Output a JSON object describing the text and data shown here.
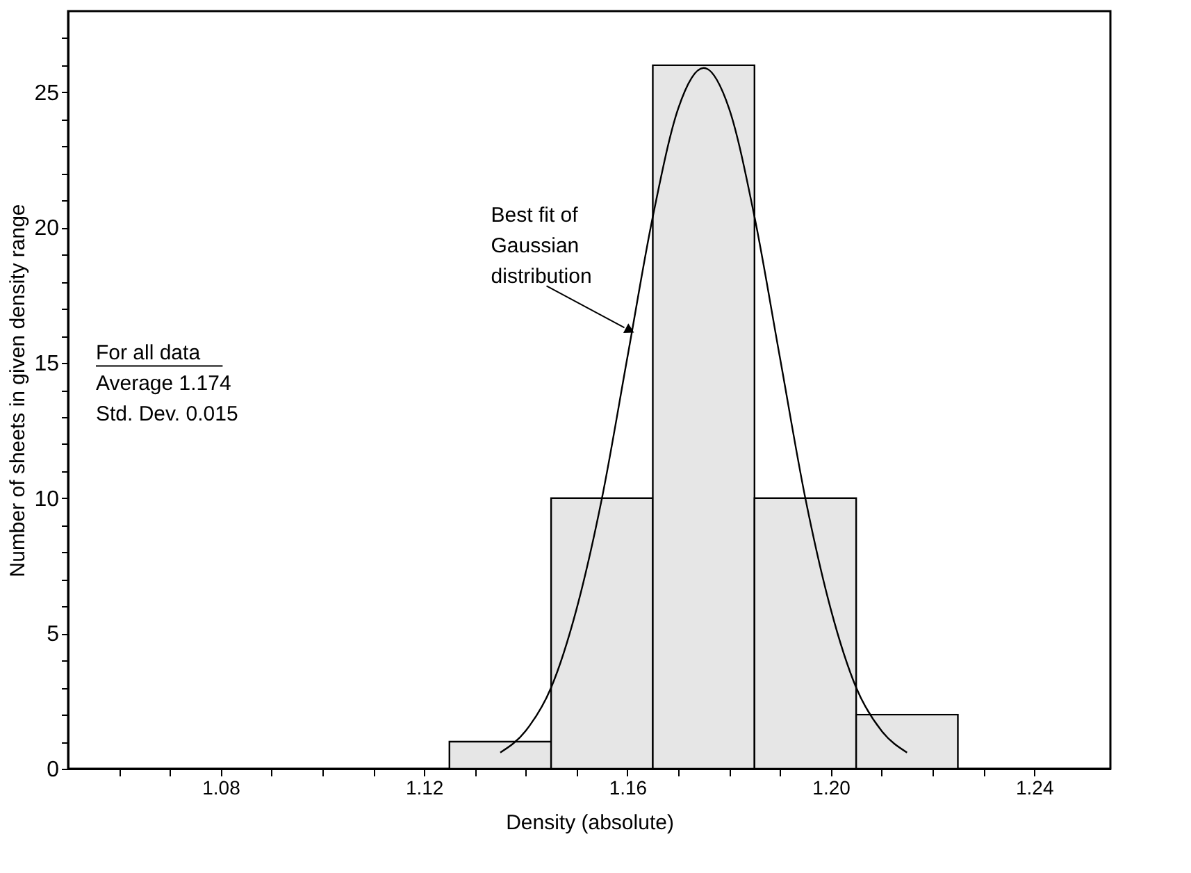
{
  "chart_data": {
    "type": "histogram",
    "xlabel": "Density (absolute)",
    "ylabel": "Number of sheets in given density range",
    "bins": [
      1.125,
      1.145,
      1.165,
      1.185,
      1.205,
      1.225
    ],
    "values": [
      1,
      10,
      26,
      10,
      2
    ],
    "color": "#e6e6e6",
    "series": [
      {
        "type": "line",
        "color": "#000000",
        "x": [
          1.135,
          1.14,
          1.145,
          1.15,
          1.155,
          1.16,
          1.165,
          1.17,
          1.175,
          1.18,
          1.185,
          1.19,
          1.195,
          1.2,
          1.205,
          1.21,
          1.215
        ],
        "values": [
          0.6,
          1.4,
          3.0,
          5.9,
          10.0,
          15.2,
          20.4,
          24.4,
          25.9,
          24.4,
          20.4,
          15.2,
          10.0,
          5.9,
          3.0,
          1.4,
          0.6
        ]
      }
    ],
    "xlim": [
      1.05,
      1.255
    ],
    "ylim": [
      0,
      28
    ],
    "xticks": [
      {
        "value": 1.06,
        "label": null
      },
      {
        "value": 1.07,
        "label": null
      },
      {
        "value": 1.08,
        "label": "1.08"
      },
      {
        "value": 1.09,
        "label": null
      },
      {
        "value": 1.1,
        "label": null
      },
      {
        "value": 1.11,
        "label": null
      },
      {
        "value": 1.12,
        "label": "1.12"
      },
      {
        "value": 1.13,
        "label": null
      },
      {
        "value": 1.14,
        "label": null
      },
      {
        "value": 1.15,
        "label": null
      },
      {
        "value": 1.16,
        "label": "1.16"
      },
      {
        "value": 1.17,
        "label": null
      },
      {
        "value": 1.18,
        "label": null
      },
      {
        "value": 1.19,
        "label": null
      },
      {
        "value": 1.2,
        "label": "1.20"
      },
      {
        "value": 1.21,
        "label": null
      },
      {
        "value": 1.22,
        "label": null
      },
      {
        "value": 1.23,
        "label": null
      },
      {
        "value": 1.24,
        "label": "1.24"
      }
    ],
    "yticks": [
      0,
      {
        "value": 1,
        "label": null
      },
      {
        "value": 2,
        "label": null
      },
      {
        "value": 3,
        "label": null
      },
      {
        "value": 4,
        "label": null
      },
      5,
      {
        "value": 6,
        "label": null
      },
      {
        "value": 7,
        "label": null
      },
      {
        "value": 8,
        "label": null
      },
      {
        "value": 9,
        "label": null
      },
      10,
      {
        "value": 11,
        "label": null
      },
      {
        "value": 12,
        "label": null
      },
      {
        "value": 13,
        "label": null
      },
      {
        "value": 14,
        "label": null
      },
      15,
      {
        "value": 16,
        "label": null
      },
      {
        "value": 17,
        "label": null
      },
      {
        "value": 18,
        "label": null
      },
      {
        "value": 19,
        "label": null
      },
      20,
      {
        "value": 21,
        "label": null
      },
      {
        "value": 22,
        "label": null
      },
      {
        "value": 23,
        "label": null
      },
      {
        "value": 24,
        "label": null
      },
      25,
      {
        "value": 26,
        "label": null
      },
      {
        "value": 27,
        "label": null
      }
    ],
    "annotations": [
      {
        "text": "Best fit of\nGaussian\ndistribution",
        "x": 1.1605,
        "y": 16.2
      },
      "For all data",
      "Average  1.174",
      "Std. Dev. 0.015"
    ],
    "grid": false
  }
}
